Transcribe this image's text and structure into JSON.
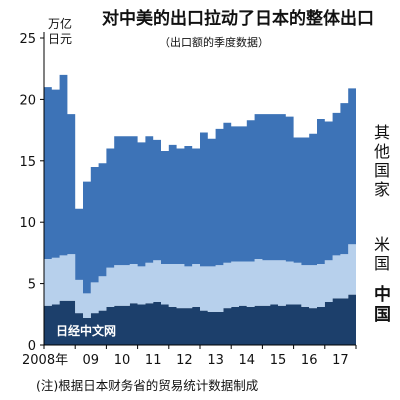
{
  "chart_data": {
    "type": "area",
    "stacked": true,
    "title": "对中美的出口拉动了日本的整体出口",
    "subtitle": "（出口额的季度数据）",
    "ylabel_line1": "万亿",
    "ylabel_line2": "日元",
    "ylim": [
      0,
      25
    ],
    "yticks": [
      0,
      5,
      10,
      15,
      20,
      25
    ],
    "x_start_year": 2008,
    "x_tick_labels": [
      "2008年",
      "09",
      "10",
      "11",
      "12",
      "13",
      "14",
      "15",
      "16",
      "17"
    ],
    "series": [
      {
        "name": "中国",
        "color": "#1c3f6b",
        "values": [
          3.2,
          3.3,
          3.6,
          3.6,
          2.6,
          2.2,
          2.6,
          2.8,
          3.1,
          3.2,
          3.2,
          3.4,
          3.3,
          3.4,
          3.5,
          3.3,
          3.1,
          3.0,
          3.0,
          3.1,
          2.8,
          2.7,
          2.7,
          3.0,
          3.1,
          3.2,
          3.1,
          3.2,
          3.2,
          3.3,
          3.2,
          3.3,
          3.3,
          3.1,
          3.0,
          3.1,
          3.5,
          3.8,
          3.8,
          4.1
        ]
      },
      {
        "name": "米国",
        "color": "#b7d0ec",
        "values": [
          3.8,
          3.8,
          3.7,
          3.8,
          2.7,
          2.0,
          2.5,
          2.8,
          3.2,
          3.3,
          3.3,
          3.2,
          3.1,
          3.3,
          3.4,
          3.3,
          3.5,
          3.6,
          3.4,
          3.5,
          3.6,
          3.7,
          3.8,
          3.7,
          3.7,
          3.6,
          3.7,
          3.8,
          3.7,
          3.6,
          3.7,
          3.5,
          3.4,
          3.4,
          3.5,
          3.5,
          3.4,
          3.5,
          3.6,
          4.1
        ]
      },
      {
        "name": "其他国家",
        "color": "#3d73b7",
        "values": [
          14.0,
          13.7,
          14.7,
          11.4,
          5.8,
          9.1,
          9.4,
          9.2,
          9.7,
          10.5,
          10.5,
          10.4,
          10.1,
          10.3,
          9.8,
          9.2,
          9.7,
          9.4,
          9.8,
          9.4,
          10.9,
          10.4,
          11.1,
          11.4,
          11.0,
          11.0,
          11.5,
          11.8,
          11.9,
          11.9,
          11.9,
          11.8,
          10.2,
          10.4,
          10.7,
          11.8,
          11.3,
          11.6,
          12.3,
          12.7
        ]
      }
    ],
    "legend_position": "right",
    "grid": false
  },
  "watermark": "日经中文网",
  "footnote": "(注)根据日本财务省的贸易统计数据制成"
}
